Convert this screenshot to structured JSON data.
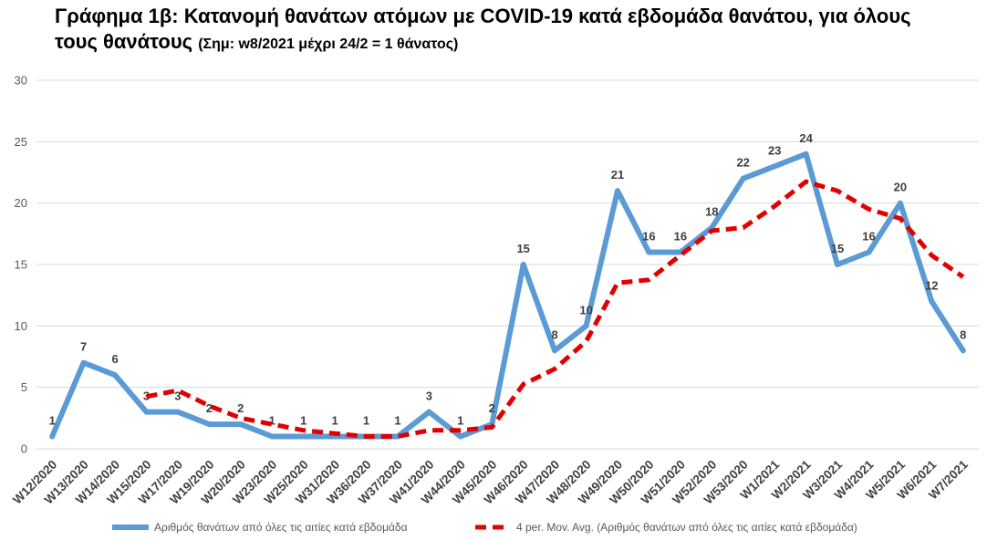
{
  "chart_data": {
    "type": "line",
    "title_lines": [
      "Γράφημα 1β: Κατανομή θανάτων ατόμων με COVID-19 κατά εβδομάδα θανάτου, για όλους",
      "τους θανάτους"
    ],
    "note": "(Σημ: w8/2021 μέχρι 24/2 = 1 θάνατος)",
    "categories": [
      "W12/2020",
      "W13/2020",
      "W14/2020",
      "W15/2020",
      "W17/2020",
      "W19/2020",
      "W20/2020",
      "W23/2020",
      "W25/2020",
      "W31/2020",
      "W36/2020",
      "W37/2020",
      "W41/2020",
      "W44/2020",
      "W45/2020",
      "W46/2020",
      "W47/2020",
      "W48/2020",
      "W49/2020",
      "W50/2020",
      "W51/2020",
      "W52/2020",
      "W53/2020",
      "W1/2021",
      "W2/2021",
      "W3/2021",
      "W4/2021",
      "W5/2021",
      "W6/2021",
      "W7/2021"
    ],
    "series": [
      {
        "name": "Αριθμός θανάτων από όλες τις αιτίες κατά εβδομάδα",
        "values": [
          1,
          7,
          6,
          3,
          3,
          2,
          2,
          1,
          1,
          1,
          1,
          1,
          3,
          1,
          2,
          15,
          8,
          10,
          21,
          16,
          16,
          18,
          22,
          23,
          24,
          15,
          16,
          20,
          12,
          8
        ],
        "color": "#5b9bd5",
        "style": "solid",
        "data_labels": true
      },
      {
        "name": "4 per. Mov. Avg. (Αριθμός θανάτων από όλες τις αιτίες κατά εβδομάδα)",
        "values": [
          null,
          null,
          null,
          4.25,
          4.75,
          3.5,
          2.5,
          2,
          1.5,
          1.25,
          1,
          1,
          1.5,
          1.5,
          1.75,
          5.25,
          6.5,
          8.75,
          13.5,
          13.75,
          15.75,
          17.75,
          18,
          19.75,
          21.75,
          21,
          19.5,
          18.75,
          15.75,
          14
        ],
        "color": "#e00000",
        "style": "dashed",
        "data_labels": false
      }
    ],
    "ylim": [
      0,
      30
    ],
    "yticks": [
      0,
      5,
      10,
      15,
      20,
      25,
      30
    ],
    "grid": true,
    "legend": "bottom"
  }
}
